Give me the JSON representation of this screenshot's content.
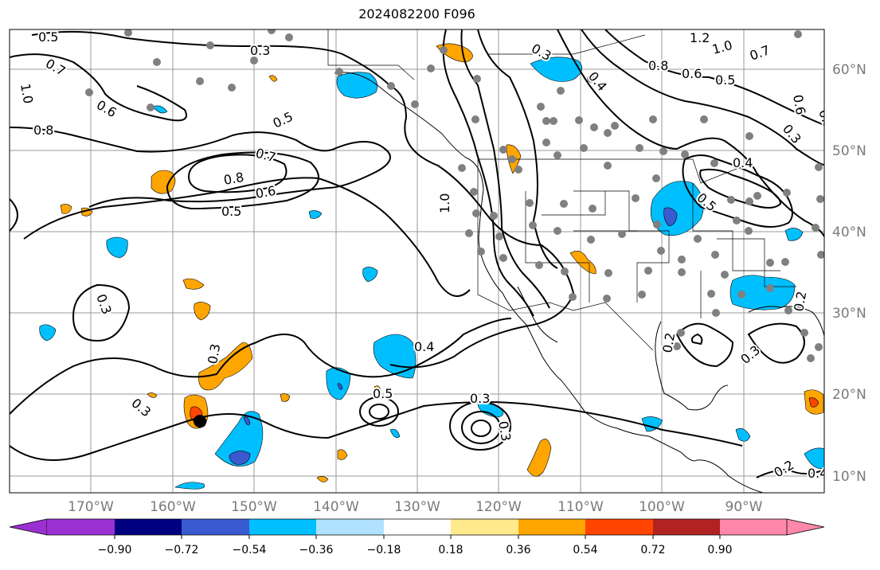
{
  "title": "2024082200 F096",
  "lon_labels": [
    "170°W",
    "160°W",
    "150°W",
    "140°W",
    "130°W",
    "120°W",
    "110°W",
    "100°W",
    "90°W"
  ],
  "lat_labels": [
    "60°N",
    "50°N",
    "40°N",
    "30°N",
    "20°N",
    "10°N"
  ],
  "contour_labels": [
    "0.5",
    "0.3",
    "0.7",
    "1.0",
    "0.8",
    "0.6",
    "0.5",
    "0.7",
    "0.8",
    "0.6",
    "0.5",
    "1.0",
    "1.2",
    "1.0",
    "0.7",
    "0.8",
    "0.6",
    "0.5",
    "0.4",
    "0.6",
    "0.3",
    "0.4",
    "0.5",
    "0.3",
    "0.4",
    "0.3",
    "0.3",
    "0.3",
    "0.5",
    "0.3",
    "0.3",
    "0.2",
    "0.2",
    "0.3",
    "0.4",
    "0.2",
    "0.3"
  ],
  "colorbar": {
    "ticks": [
      "−0.90",
      "−0.72",
      "−0.54",
      "−0.36",
      "−0.18",
      "0.18",
      "0.36",
      "0.54",
      "0.72",
      "0.90"
    ],
    "colors": [
      "#9b30d0",
      "#000080",
      "#3a5bd0",
      "#00bfff",
      "#b0e2ff",
      "#ffffff",
      "#ffe98a",
      "#ffa500",
      "#ff4500",
      "#b22222",
      "#ff88aa"
    ]
  },
  "colors": {
    "contour": "#000000",
    "grid": "#9a9a9a",
    "station": "#808080",
    "orange": "#ffa500",
    "light_blue": "#00bfff",
    "blue": "#3a5bd0",
    "red": "#ff4500"
  }
}
